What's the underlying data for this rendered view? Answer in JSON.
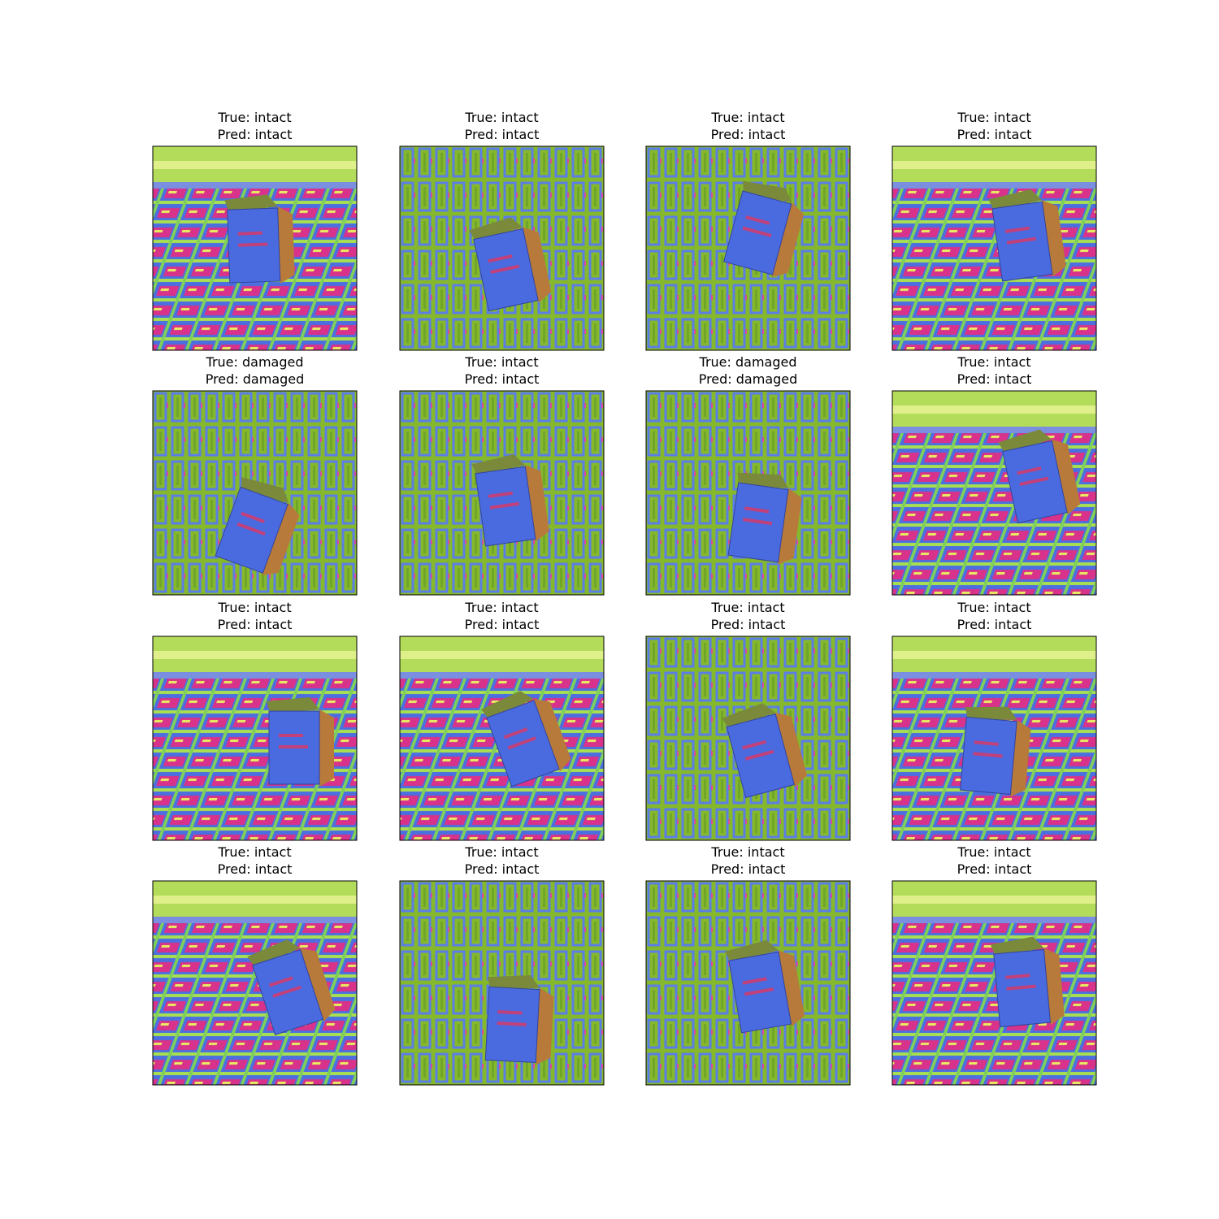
{
  "panels": [
    {
      "true_label": "True: intact",
      "pred_label": "Pred: intact"
    },
    {
      "true_label": "True: intact",
      "pred_label": "Pred: intact"
    },
    {
      "true_label": "True: intact",
      "pred_label": "Pred: intact"
    },
    {
      "true_label": "True: intact",
      "pred_label": "Pred: intact"
    },
    {
      "true_label": "True: damaged",
      "pred_label": "Pred: damaged"
    },
    {
      "true_label": "True: intact",
      "pred_label": "Pred: intact"
    },
    {
      "true_label": "True: damaged",
      "pred_label": "Pred: damaged"
    },
    {
      "true_label": "True: intact",
      "pred_label": "Pred: intact"
    },
    {
      "true_label": "True: intact",
      "pred_label": "Pred: intact"
    },
    {
      "true_label": "True: intact",
      "pred_label": "Pred: intact"
    },
    {
      "true_label": "True: intact",
      "pred_label": "Pred: intact"
    },
    {
      "true_label": "True: intact",
      "pred_label": "Pred: intact"
    },
    {
      "true_label": "True: intact",
      "pred_label": "Pred: intact"
    },
    {
      "true_label": "True: intact",
      "pred_label": "Pred: intact"
    },
    {
      "true_label": "True: intact",
      "pred_label": "Pred: intact"
    },
    {
      "true_label": "True: intact",
      "pred_label": "Pred: intact"
    }
  ]
}
